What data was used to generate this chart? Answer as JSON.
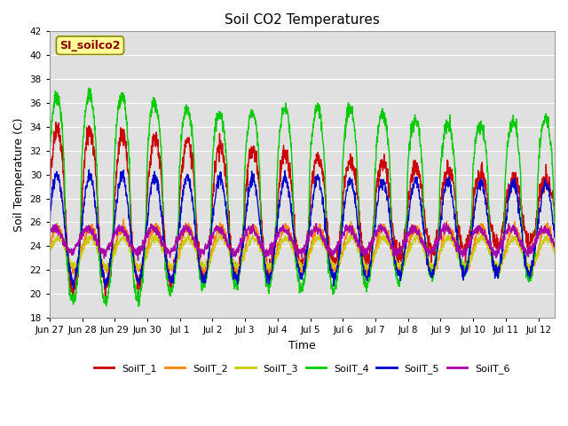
{
  "title": "Soil CO2 Temperatures",
  "xlabel": "Time",
  "ylabel": "Soil Temperature (C)",
  "ylim": [
    18,
    42
  ],
  "yticks": [
    18,
    20,
    22,
    24,
    26,
    28,
    30,
    32,
    34,
    36,
    38,
    40,
    42
  ],
  "bg_color": "#e0e0e0",
  "fig_color": "#ffffff",
  "annotation_text": "SI_soilco2",
  "annotation_color": "#8B0000",
  "annotation_bg": "#ffff99",
  "line_colors": {
    "SoilT_1": "#cc0000",
    "SoilT_2": "#ff8800",
    "SoilT_3": "#cccc00",
    "SoilT_4": "#00cc00",
    "SoilT_5": "#0000cc",
    "SoilT_6": "#aa00aa"
  },
  "xtick_labels": [
    "Jun 27",
    "Jun 28",
    "Jun 29",
    "Jun 30",
    "Jul 1",
    "Jul 2",
    "Jul 3",
    "Jul 4",
    "Jul 5",
    "Jul 6",
    "Jul 7",
    "Jul 8",
    "Jul 9",
    "Jul 10",
    "Jul 11",
    "Jul 12"
  ],
  "days": 15.5
}
